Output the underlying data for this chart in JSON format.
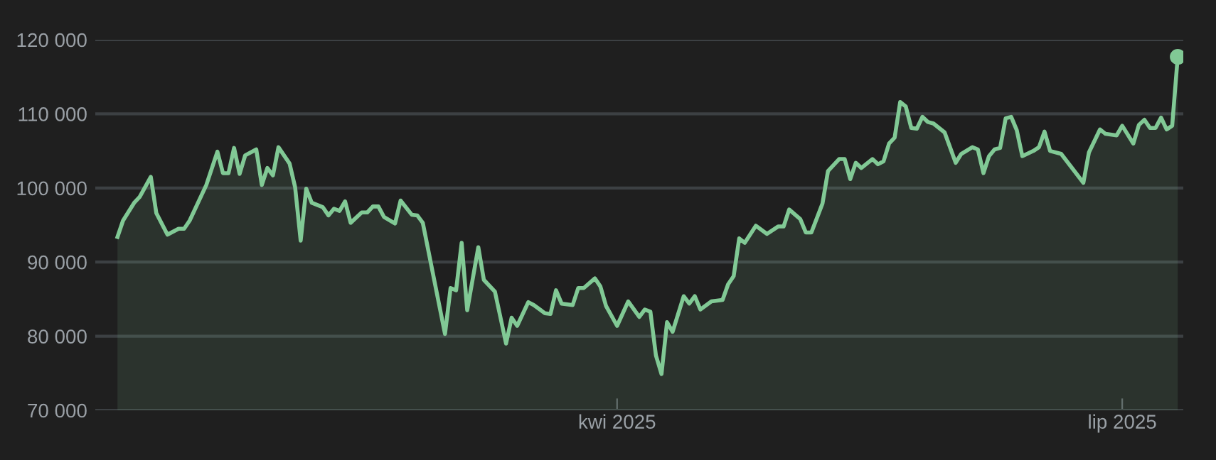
{
  "chart_data": {
    "type": "area",
    "x": [
      "2025-01-01",
      "2025-01-02",
      "2025-01-04",
      "2025-01-05",
      "2025-01-07",
      "2025-01-08",
      "2025-01-10",
      "2025-01-12",
      "2025-01-13",
      "2025-01-14",
      "2025-01-17",
      "2025-01-19",
      "2025-01-20",
      "2025-01-21",
      "2025-01-22",
      "2025-01-23",
      "2025-01-24",
      "2025-01-26",
      "2025-01-27",
      "2025-01-28",
      "2025-01-29",
      "2025-01-30",
      "2025-02-01",
      "2025-02-02",
      "2025-02-03",
      "2025-02-04",
      "2025-02-05",
      "2025-02-07",
      "2025-02-08",
      "2025-02-09",
      "2025-02-10",
      "2025-02-11",
      "2025-02-12",
      "2025-02-14",
      "2025-02-15",
      "2025-02-16",
      "2025-02-17",
      "2025-02-18",
      "2025-02-20",
      "2025-02-21",
      "2025-02-23",
      "2025-02-24",
      "2025-02-25",
      "2025-03-01",
      "2025-03-02",
      "2025-03-03",
      "2025-03-04",
      "2025-03-05",
      "2025-03-07",
      "2025-03-08",
      "2025-03-10",
      "2025-03-12",
      "2025-03-13",
      "2025-03-14",
      "2025-03-16",
      "2025-03-17",
      "2025-03-19",
      "2025-03-20",
      "2025-03-21",
      "2025-03-22",
      "2025-03-24",
      "2025-03-25",
      "2025-03-26",
      "2025-03-28",
      "2025-03-29",
      "2025-03-30",
      "2025-04-01",
      "2025-04-03",
      "2025-04-05",
      "2025-04-06",
      "2025-04-07",
      "2025-04-08",
      "2025-04-09",
      "2025-04-10",
      "2025-04-11",
      "2025-04-13",
      "2025-04-14",
      "2025-04-15",
      "2025-04-16",
      "2025-04-18",
      "2025-04-20",
      "2025-04-21",
      "2025-04-22",
      "2025-04-23",
      "2025-04-24",
      "2025-04-26",
      "2025-04-28",
      "2025-04-30",
      "2025-05-01",
      "2025-05-02",
      "2025-05-04",
      "2025-05-05",
      "2025-05-06",
      "2025-05-08",
      "2025-05-09",
      "2025-05-11",
      "2025-05-12",
      "2025-05-13",
      "2025-05-14",
      "2025-05-15",
      "2025-05-17",
      "2025-05-18",
      "2025-05-19",
      "2025-05-20",
      "2025-05-21",
      "2025-05-22",
      "2025-05-23",
      "2025-05-24",
      "2025-05-25",
      "2025-05-26",
      "2025-05-27",
      "2025-05-28",
      "2025-05-30",
      "2025-06-01",
      "2025-06-02",
      "2025-06-04",
      "2025-06-05",
      "2025-06-06",
      "2025-06-07",
      "2025-06-08",
      "2025-06-09",
      "2025-06-10",
      "2025-06-11",
      "2025-06-12",
      "2025-06-13",
      "2025-06-15",
      "2025-06-16",
      "2025-06-17",
      "2025-06-18",
      "2025-06-20",
      "2025-06-24",
      "2025-06-25",
      "2025-06-27",
      "2025-06-28",
      "2025-06-30",
      "2025-07-01",
      "2025-07-03",
      "2025-07-04",
      "2025-07-05",
      "2025-07-06",
      "2025-07-07",
      "2025-07-08",
      "2025-07-09",
      "2025-07-10",
      "2025-07-11"
    ],
    "series": [
      {
        "color": "#81c995",
        "values": [
          93400,
          95600,
          98000,
          98800,
          101500,
          96600,
          93700,
          94500,
          94500,
          95600,
          100400,
          104900,
          102000,
          102000,
          105400,
          101900,
          104400,
          105200,
          100400,
          102700,
          101700,
          105500,
          103300,
          100100,
          92900,
          99900,
          98000,
          97400,
          96300,
          97200,
          96900,
          98200,
          95300,
          96700,
          96700,
          97500,
          97500,
          96100,
          95200,
          98300,
          96400,
          96300,
          95300,
          80300,
          86500,
          86200,
          92600,
          83500,
          92000,
          87600,
          86000,
          79000,
          82500,
          81400,
          84600,
          84200,
          83100,
          83000,
          86200,
          84400,
          84200,
          86500,
          86500,
          87800,
          86700,
          84100,
          81400,
          84700,
          82600,
          83600,
          83300,
          77400,
          74900,
          81900,
          80600,
          85400,
          84400,
          85400,
          83600,
          84700,
          84900,
          87000,
          88100,
          93200,
          92600,
          94900,
          93800,
          94800,
          94800,
          97100,
          95800,
          94000,
          94000,
          97900,
          102300,
          103900,
          103900,
          101200,
          103400,
          102700,
          103900,
          103200,
          103600,
          106000,
          106800,
          111600,
          111000,
          108100,
          108000,
          109600,
          108900,
          108700,
          107500,
          103400,
          104600,
          105500,
          105200,
          102000,
          104300,
          105200,
          105400,
          109400,
          109600,
          107800,
          104300,
          105000,
          105500,
          107600,
          105000,
          104600,
          100700,
          104800,
          107900,
          107300,
          107100,
          108400,
          106000,
          108500,
          109200,
          108100,
          108100,
          109500,
          107900,
          108400,
          117700
        ]
      }
    ],
    "xlim": [
      "2024-12-28",
      "2025-07-12"
    ],
    "xticks": [
      {
        "value": "2025-04-01",
        "label": "kwi 2025"
      },
      {
        "value": "2025-07-01",
        "label": "lip 2025"
      }
    ],
    "ylim": [
      70000,
      120000
    ],
    "yticks": [
      {
        "value": 70000,
        "label": "70 000"
      },
      {
        "value": 80000,
        "label": "80 000"
      },
      {
        "value": 90000,
        "label": "90 000"
      },
      {
        "value": 100000,
        "label": "100 000"
      },
      {
        "value": 110000,
        "label": "110 000"
      },
      {
        "value": 120000,
        "label": "120 000"
      }
    ],
    "grid": "y"
  }
}
